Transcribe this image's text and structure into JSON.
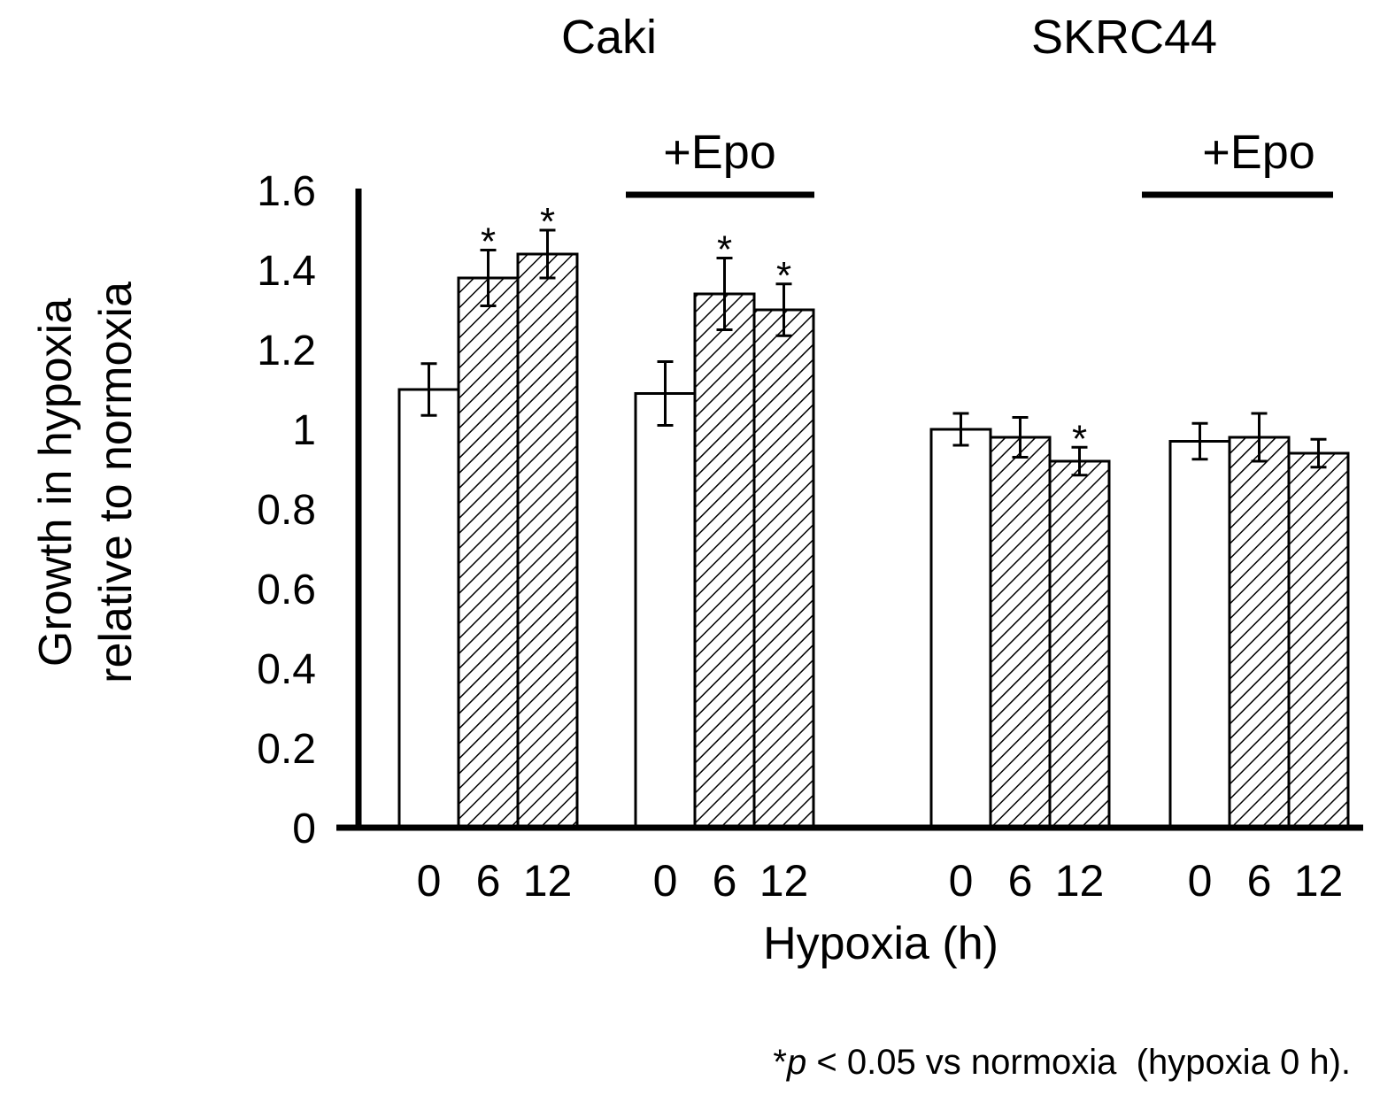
{
  "chart_data": {
    "type": "bar",
    "groups": [
      {
        "title": "Caki",
        "epo_label": "+Epo"
      },
      {
        "title": "SKRC44",
        "epo_label": "+Epo"
      }
    ],
    "categories": [
      "0",
      "6",
      "12"
    ],
    "series": [
      {
        "cell_line": "Caki",
        "treatment": "",
        "values": [
          1.1,
          1.38,
          1.44
        ],
        "errors": [
          0.065,
          0.07,
          0.06
        ],
        "significant": [
          false,
          true,
          true
        ]
      },
      {
        "cell_line": "Caki",
        "treatment": "+Epo",
        "values": [
          1.09,
          1.34,
          1.3
        ],
        "errors": [
          0.08,
          0.09,
          0.065
        ],
        "significant": [
          false,
          true,
          true
        ]
      },
      {
        "cell_line": "SKRC44",
        "treatment": "",
        "values": [
          1.0,
          0.98,
          0.92
        ],
        "errors": [
          0.04,
          0.05,
          0.035
        ],
        "significant": [
          false,
          false,
          true
        ]
      },
      {
        "cell_line": "SKRC44",
        "treatment": "+Epo",
        "values": [
          0.97,
          0.98,
          0.94
        ],
        "errors": [
          0.045,
          0.06,
          0.035
        ],
        "significant": [
          false,
          false,
          false
        ]
      }
    ],
    "bar_styles": [
      "open",
      "hatched",
      "hatched"
    ],
    "significance_marker": "*",
    "ylabel_lines": [
      "Growth in hypoxia",
      "relative to normoxia"
    ],
    "xlabel": "Hypoxia (h)",
    "yticks": [
      "0",
      "0.2",
      "0.4",
      "0.6",
      "0.8",
      "1",
      "1.2",
      "1.4",
      "1.6"
    ],
    "ylim": [
      0,
      1.6
    ],
    "footnote": {
      "star": "*",
      "p": "p",
      "rest": " < 0.05 vs normoxia  (hypoxia 0 h)."
    },
    "colors": {
      "bar_open": "#ffffff",
      "bar_hatch": "#000000",
      "stroke": "#000000"
    }
  }
}
